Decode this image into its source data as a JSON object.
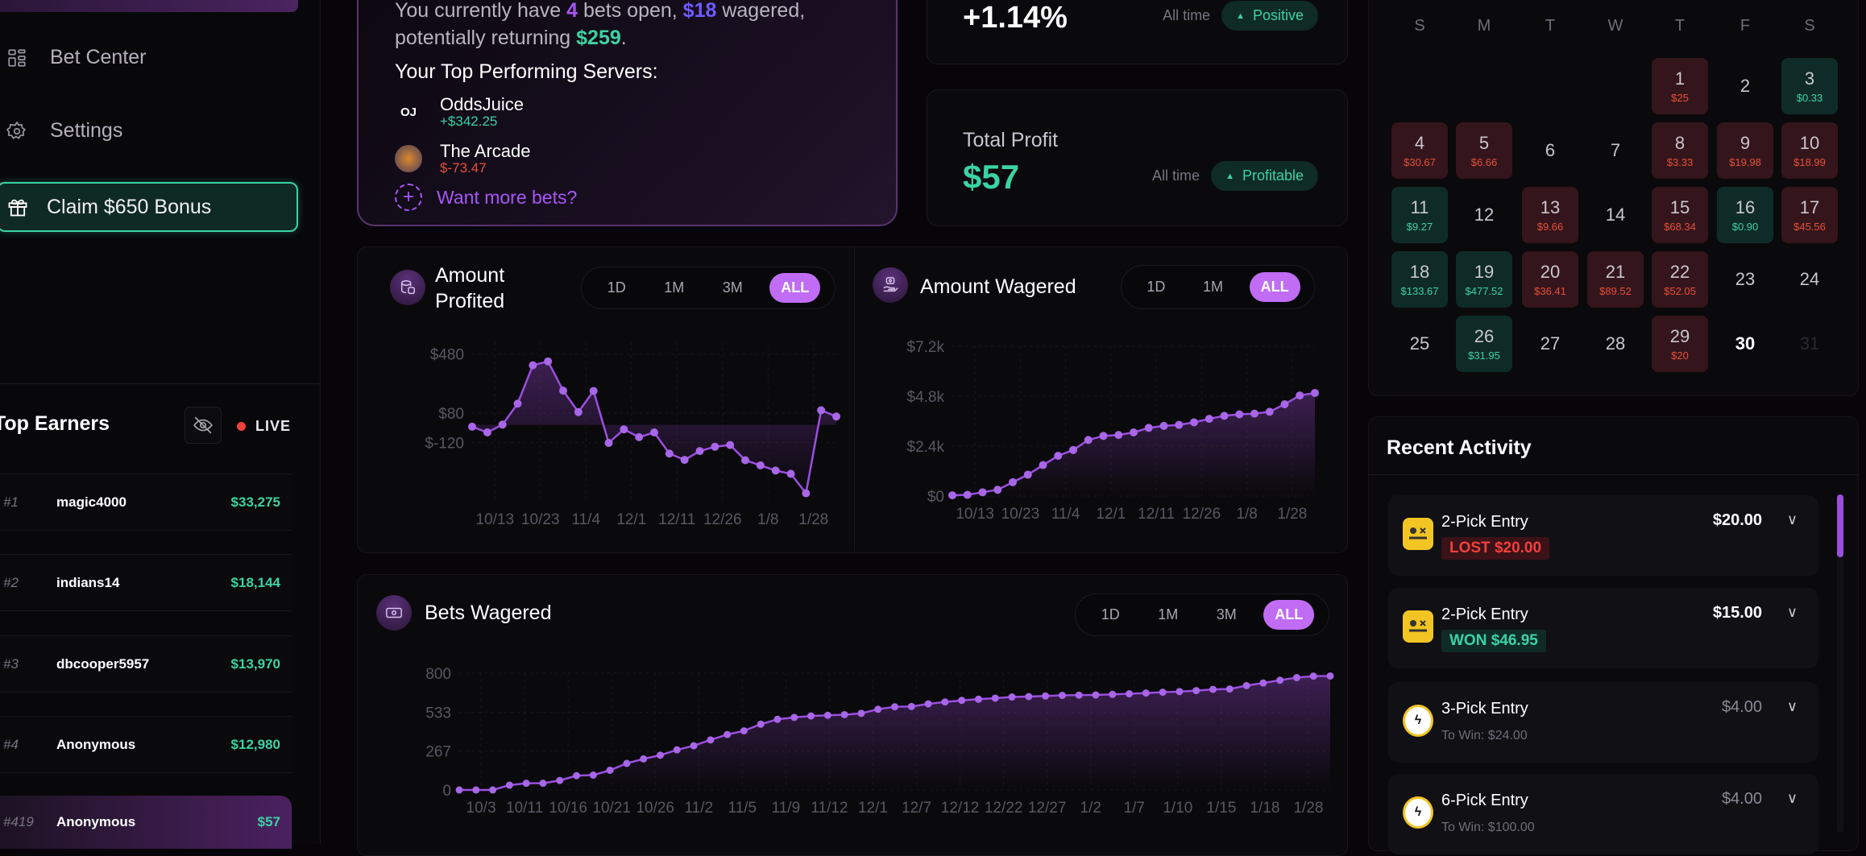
{
  "sidebar": {
    "nav": [
      {
        "label": "Bet Center",
        "icon": "grid-icon"
      },
      {
        "label": "Settings",
        "icon": "gear-icon"
      }
    ],
    "claim_label": "Claim $650 Bonus",
    "top_earners": {
      "title": "Top Earners",
      "live_label": "LIVE",
      "rows": [
        {
          "rank": "#1",
          "name": "magic4000",
          "amount": "$33,275"
        },
        {
          "rank": "#2",
          "name": "indians14",
          "amount": "$18,144"
        },
        {
          "rank": "#3",
          "name": "dbcooper5957",
          "amount": "$13,970"
        },
        {
          "rank": "#4",
          "name": "Anonymous",
          "amount": "$12,980"
        },
        {
          "rank": "#419",
          "name": "Anonymous",
          "amount": "$57"
        }
      ]
    }
  },
  "summary": {
    "p1": "You currently have ",
    "bets_open": "4",
    "p2": " bets open, ",
    "wagered": "$18",
    "p3": " wagered, potentially returning ",
    "returning": "$259",
    "p4": ".",
    "servers_title": "Your Top Performing Servers:",
    "servers": [
      {
        "name": "OddsJuice",
        "value": "+$342.25",
        "status": "positive"
      },
      {
        "name": "The Arcade",
        "value": "$-73.47",
        "status": "negative"
      }
    ],
    "more_label": "Want more bets?"
  },
  "stats": [
    {
      "value": "+1.14%",
      "period": "All time",
      "badge": "Positive"
    },
    {
      "label": "Total Profit",
      "value": "$57",
      "period": "All time",
      "badge": "Profitable"
    }
  ],
  "colors": {
    "accent": "#c06cf5",
    "line": "#9b4fe0",
    "positive": "#3ad3a4",
    "negative": "#e6503a"
  },
  "chart_data": [
    {
      "type": "line",
      "title": "Amount Profited",
      "ranges": [
        "1D",
        "1M",
        "3M",
        "ALL"
      ],
      "selected_range": "ALL",
      "yticks": [
        "$480",
        "$80",
        "$-120"
      ],
      "ytick_values": [
        480,
        80,
        -120
      ],
      "xticks": [
        "10/13",
        "10/23",
        "11/4",
        "12/1",
        "12/11",
        "12/26",
        "1/8",
        "1/28"
      ],
      "values": [
        -12,
        -51,
        2,
        144,
        404,
        430,
        232,
        87,
        230,
        -122,
        -30,
        -83,
        -51,
        -194,
        -237,
        -177,
        -148,
        -136,
        -239,
        -274,
        -309,
        -331,
        -463,
        99,
        57
      ],
      "ylim": [
        -520,
        560
      ],
      "grid": true
    },
    {
      "type": "area",
      "title": "Amount Wagered",
      "ranges": [
        "1D",
        "1M",
        "ALL"
      ],
      "selected_range": "ALL",
      "yticks": [
        "$7.2k",
        "$4.8k",
        "$2.4k",
        "$0"
      ],
      "ytick_values": [
        7200,
        4800,
        2400,
        0
      ],
      "xticks": [
        "10/13",
        "10/23",
        "11/4",
        "12/1",
        "12/11",
        "12/26",
        "1/8",
        "1/28"
      ],
      "values": [
        36,
        60,
        181,
        302,
        665,
        1028,
        1488,
        1935,
        2213,
        2696,
        2890,
        2938,
        3059,
        3277,
        3373,
        3422,
        3542,
        3711,
        3856,
        3929,
        3965,
        4050,
        4413,
        4836,
        4957
      ],
      "ylim": [
        0,
        7200
      ],
      "grid": true
    },
    {
      "type": "area",
      "title": "Bets Wagered",
      "ranges": [
        "1D",
        "1M",
        "3M",
        "ALL"
      ],
      "selected_range": "ALL",
      "yticks": [
        "800",
        "533",
        "267",
        "0"
      ],
      "ytick_values": [
        800,
        533,
        267,
        0
      ],
      "xticks": [
        "10/3",
        "10/11",
        "10/16",
        "10/21",
        "10/26",
        "11/2",
        "11/5",
        "11/9",
        "11/12",
        "12/1",
        "12/7",
        "12/12",
        "12/22",
        "12/27",
        "1/2",
        "1/7",
        "1/10",
        "1/15",
        "1/18",
        "1/28"
      ],
      "values": [
        0,
        0,
        0,
        33,
        46,
        46,
        65,
        98,
        102,
        135,
        182,
        213,
        238,
        275,
        303,
        343,
        380,
        405,
        451,
        484,
        497,
        507,
        512,
        516,
        525,
        553,
        570,
        572,
        590,
        603,
        614,
        622,
        629,
        637,
        640,
        644,
        648,
        650,
        651,
        655,
        659,
        664,
        670,
        674,
        681,
        689,
        692,
        715,
        733,
        752,
        770,
        780,
        781
      ],
      "ylim": [
        0,
        800
      ],
      "grid": true
    }
  ],
  "calendar": {
    "weekdays": [
      "S",
      "M",
      "T",
      "W",
      "T",
      "F",
      "S"
    ],
    "first_weekday": 4,
    "days": [
      {
        "d": "1",
        "v": "$25",
        "s": "loss"
      },
      {
        "d": "2"
      },
      {
        "d": "3",
        "v": "$0.33",
        "s": "win"
      },
      {
        "d": "4",
        "v": "$30.67",
        "s": "loss"
      },
      {
        "d": "5",
        "v": "$6.66",
        "s": "loss"
      },
      {
        "d": "6"
      },
      {
        "d": "7"
      },
      {
        "d": "8",
        "v": "$3.33",
        "s": "loss"
      },
      {
        "d": "9",
        "v": "$19.98",
        "s": "loss"
      },
      {
        "d": "10",
        "v": "$18.99",
        "s": "loss"
      },
      {
        "d": "11",
        "v": "$9.27",
        "s": "win"
      },
      {
        "d": "12"
      },
      {
        "d": "13",
        "v": "$9.66",
        "s": "loss"
      },
      {
        "d": "14"
      },
      {
        "d": "15",
        "v": "$68.34",
        "s": "loss"
      },
      {
        "d": "16",
        "v": "$0.90",
        "s": "win"
      },
      {
        "d": "17",
        "v": "$45.56",
        "s": "loss"
      },
      {
        "d": "18",
        "v": "$133.67",
        "s": "win"
      },
      {
        "d": "19",
        "v": "$477.52",
        "s": "win"
      },
      {
        "d": "20",
        "v": "$36.41",
        "s": "loss"
      },
      {
        "d": "21",
        "v": "$89.52",
        "s": "loss"
      },
      {
        "d": "22",
        "v": "$52.05",
        "s": "loss"
      },
      {
        "d": "23"
      },
      {
        "d": "24"
      },
      {
        "d": "25"
      },
      {
        "d": "26",
        "v": "$31.95",
        "s": "win"
      },
      {
        "d": "27"
      },
      {
        "d": "28"
      },
      {
        "d": "29",
        "v": "$20",
        "s": "loss"
      },
      {
        "d": "30",
        "s": "today"
      },
      {
        "d": "31",
        "s": "future"
      }
    ]
  },
  "recent_activity": {
    "title": "Recent Activity",
    "items": [
      {
        "title": "2-Pick Entry",
        "amount": "$20.00",
        "result": "LOST $20.00",
        "status": "lost",
        "icon": "yellow-robot-icon"
      },
      {
        "title": "2-Pick Entry",
        "amount": "$15.00",
        "result": "WON $46.95",
        "status": "won",
        "icon": "yellow-robot-icon"
      },
      {
        "title": "3-Pick Entry",
        "amount": "$4.00",
        "sub": "To Win: $24.00",
        "status": "open",
        "icon": "lightning-logo-icon"
      },
      {
        "title": "6-Pick Entry",
        "amount": "$4.00",
        "sub": "To Win: $100.00",
        "status": "open",
        "icon": "lightning-logo-icon"
      }
    ]
  }
}
